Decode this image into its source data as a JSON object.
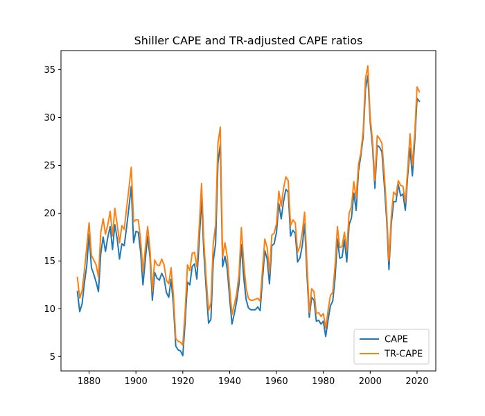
{
  "chart_data": {
    "type": "line",
    "title": "Shiller CAPE and TR-adjusted CAPE ratios",
    "xlabel": "",
    "ylabel": "",
    "xlim": [
      1868,
      2028
    ],
    "ylim": [
      3.5,
      37
    ],
    "x_ticks": [
      1880,
      1900,
      1920,
      1940,
      1960,
      1980,
      2000,
      2020
    ],
    "y_ticks": [
      5,
      10,
      15,
      20,
      25,
      30,
      35
    ],
    "legend_position": "lower-right",
    "grid": false,
    "series": [
      {
        "name": "CAPE",
        "color": "#1f77b4",
        "points": [
          [
            1875,
            11.8
          ],
          [
            1876,
            9.7
          ],
          [
            1877,
            10.5
          ],
          [
            1878,
            12.7
          ],
          [
            1879,
            14.5
          ],
          [
            1880,
            17.8
          ],
          [
            1881,
            14.3
          ],
          [
            1882,
            13.6
          ],
          [
            1883,
            12.8
          ],
          [
            1884,
            11.8
          ],
          [
            1885,
            15.8
          ],
          [
            1886,
            17.5
          ],
          [
            1887,
            16.0
          ],
          [
            1888,
            17.5
          ],
          [
            1889,
            18.6
          ],
          [
            1890,
            16.2
          ],
          [
            1891,
            18.8
          ],
          [
            1892,
            17.3
          ],
          [
            1893,
            15.2
          ],
          [
            1894,
            16.8
          ],
          [
            1895,
            16.6
          ],
          [
            1896,
            18.5
          ],
          [
            1897,
            20.6
          ],
          [
            1898,
            22.8
          ],
          [
            1899,
            16.9
          ],
          [
            1900,
            18.1
          ],
          [
            1901,
            18.0
          ],
          [
            1902,
            15.9
          ],
          [
            1903,
            12.5
          ],
          [
            1904,
            15.1
          ],
          [
            1905,
            17.6
          ],
          [
            1906,
            15.4
          ],
          [
            1907,
            10.9
          ],
          [
            1908,
            13.8
          ],
          [
            1909,
            13.2
          ],
          [
            1910,
            13.0
          ],
          [
            1911,
            13.7
          ],
          [
            1912,
            13.2
          ],
          [
            1913,
            11.7
          ],
          [
            1914,
            11.2
          ],
          [
            1915,
            13.1
          ],
          [
            1916,
            10.4
          ],
          [
            1917,
            6.1
          ],
          [
            1918,
            5.7
          ],
          [
            1919,
            5.6
          ],
          [
            1920,
            5.1
          ],
          [
            1921,
            8.6
          ],
          [
            1922,
            12.8
          ],
          [
            1923,
            12.5
          ],
          [
            1924,
            14.4
          ],
          [
            1925,
            14.7
          ],
          [
            1926,
            13.1
          ],
          [
            1927,
            17.0
          ],
          [
            1928,
            21.5
          ],
          [
            1929,
            15.8
          ],
          [
            1930,
            12.0
          ],
          [
            1931,
            8.5
          ],
          [
            1932,
            8.9
          ],
          [
            1933,
            15.0
          ],
          [
            1934,
            16.8
          ],
          [
            1935,
            25.2
          ],
          [
            1936,
            27.2
          ],
          [
            1937,
            14.4
          ],
          [
            1938,
            15.5
          ],
          [
            1939,
            14.1
          ],
          [
            1940,
            11.1
          ],
          [
            1941,
            8.4
          ],
          [
            1942,
            9.5
          ],
          [
            1943,
            10.8
          ],
          [
            1944,
            12.6
          ],
          [
            1945,
            16.7
          ],
          [
            1946,
            13.3
          ],
          [
            1947,
            11.0
          ],
          [
            1948,
            10.1
          ],
          [
            1949,
            9.9
          ],
          [
            1950,
            9.9
          ],
          [
            1951,
            9.9
          ],
          [
            1952,
            10.2
          ],
          [
            1953,
            9.8
          ],
          [
            1954,
            13.0
          ],
          [
            1955,
            16.1
          ],
          [
            1956,
            15.2
          ],
          [
            1957,
            12.6
          ],
          [
            1958,
            16.6
          ],
          [
            1959,
            16.8
          ],
          [
            1960,
            18.0
          ],
          [
            1961,
            21.0
          ],
          [
            1962,
            19.4
          ],
          [
            1963,
            21.2
          ],
          [
            1964,
            22.5
          ],
          [
            1965,
            22.2
          ],
          [
            1966,
            17.6
          ],
          [
            1967,
            18.2
          ],
          [
            1968,
            17.9
          ],
          [
            1969,
            14.9
          ],
          [
            1970,
            15.3
          ],
          [
            1971,
            16.6
          ],
          [
            1972,
            18.9
          ],
          [
            1973,
            13.6
          ],
          [
            1974,
            9.1
          ],
          [
            1975,
            11.2
          ],
          [
            1976,
            10.9
          ],
          [
            1977,
            8.7
          ],
          [
            1978,
            8.8
          ],
          [
            1979,
            8.4
          ],
          [
            1980,
            8.7
          ],
          [
            1981,
            7.1
          ],
          [
            1982,
            8.8
          ],
          [
            1983,
            10.3
          ],
          [
            1984,
            10.8
          ],
          [
            1985,
            13.2
          ],
          [
            1986,
            17.3
          ],
          [
            1987,
            15.3
          ],
          [
            1988,
            15.4
          ],
          [
            1989,
            17.2
          ],
          [
            1990,
            14.9
          ],
          [
            1991,
            18.8
          ],
          [
            1992,
            19.5
          ],
          [
            1993,
            22.1
          ],
          [
            1994,
            20.3
          ],
          [
            1995,
            24.4
          ],
          [
            1996,
            26.0
          ],
          [
            1997,
            28.0
          ],
          [
            1998,
            33.0
          ],
          [
            1999,
            34.4
          ],
          [
            2000,
            29.5
          ],
          [
            2001,
            26.9
          ],
          [
            2002,
            22.6
          ],
          [
            2003,
            27.1
          ],
          [
            2004,
            26.9
          ],
          [
            2005,
            26.4
          ],
          [
            2006,
            23.0
          ],
          [
            2007,
            19.4
          ],
          [
            2008,
            14.1
          ],
          [
            2009,
            18.9
          ],
          [
            2010,
            21.2
          ],
          [
            2011,
            21.2
          ],
          [
            2012,
            23.0
          ],
          [
            2013,
            21.8
          ],
          [
            2014,
            22.0
          ],
          [
            2015,
            20.3
          ],
          [
            2016,
            23.9
          ],
          [
            2017,
            26.8
          ],
          [
            2018,
            23.9
          ],
          [
            2019,
            27.5
          ],
          [
            2020,
            32.0
          ],
          [
            2021,
            31.7
          ]
        ]
      },
      {
        "name": "TR-CAPE",
        "color": "#ff7f0e",
        "points": [
          [
            1875,
            13.3
          ],
          [
            1876,
            11.1
          ],
          [
            1877,
            11.9
          ],
          [
            1878,
            14.0
          ],
          [
            1879,
            16.5
          ],
          [
            1880,
            19.0
          ],
          [
            1881,
            15.6
          ],
          [
            1882,
            15.1
          ],
          [
            1883,
            14.6
          ],
          [
            1884,
            13.3
          ],
          [
            1885,
            18.0
          ],
          [
            1886,
            19.4
          ],
          [
            1887,
            17.8
          ],
          [
            1888,
            18.8
          ],
          [
            1889,
            20.2
          ],
          [
            1890,
            17.6
          ],
          [
            1891,
            20.5
          ],
          [
            1892,
            18.8
          ],
          [
            1893,
            16.9
          ],
          [
            1894,
            18.7
          ],
          [
            1895,
            18.3
          ],
          [
            1896,
            20.5
          ],
          [
            1897,
            22.6
          ],
          [
            1898,
            24.8
          ],
          [
            1899,
            19.1
          ],
          [
            1900,
            19.3
          ],
          [
            1901,
            19.3
          ],
          [
            1902,
            17.2
          ],
          [
            1903,
            13.8
          ],
          [
            1904,
            16.3
          ],
          [
            1905,
            18.6
          ],
          [
            1906,
            16.2
          ],
          [
            1907,
            11.8
          ],
          [
            1908,
            15.1
          ],
          [
            1909,
            14.6
          ],
          [
            1910,
            14.5
          ],
          [
            1911,
            15.2
          ],
          [
            1912,
            14.6
          ],
          [
            1913,
            13.0
          ],
          [
            1914,
            12.6
          ],
          [
            1915,
            14.3
          ],
          [
            1916,
            11.4
          ],
          [
            1917,
            6.9
          ],
          [
            1918,
            6.6
          ],
          [
            1919,
            6.5
          ],
          [
            1920,
            6.2
          ],
          [
            1921,
            9.7
          ],
          [
            1922,
            14.6
          ],
          [
            1923,
            14.0
          ],
          [
            1924,
            15.8
          ],
          [
            1925,
            15.9
          ],
          [
            1926,
            14.4
          ],
          [
            1927,
            18.5
          ],
          [
            1928,
            23.1
          ],
          [
            1929,
            17.0
          ],
          [
            1930,
            13.1
          ],
          [
            1931,
            9.8
          ],
          [
            1932,
            10.6
          ],
          [
            1933,
            16.8
          ],
          [
            1934,
            18.8
          ],
          [
            1935,
            27.3
          ],
          [
            1936,
            29.0
          ],
          [
            1937,
            15.4
          ],
          [
            1938,
            16.9
          ],
          [
            1939,
            15.4
          ],
          [
            1940,
            12.2
          ],
          [
            1941,
            9.4
          ],
          [
            1942,
            10.4
          ],
          [
            1943,
            11.6
          ],
          [
            1944,
            13.6
          ],
          [
            1945,
            18.5
          ],
          [
            1946,
            14.9
          ],
          [
            1947,
            12.2
          ],
          [
            1948,
            11.1
          ],
          [
            1949,
            10.9
          ],
          [
            1950,
            10.9
          ],
          [
            1951,
            11.0
          ],
          [
            1952,
            11.1
          ],
          [
            1953,
            10.8
          ],
          [
            1954,
            14.0
          ],
          [
            1955,
            17.3
          ],
          [
            1956,
            16.4
          ],
          [
            1957,
            13.7
          ],
          [
            1958,
            17.7
          ],
          [
            1959,
            17.9
          ],
          [
            1960,
            18.9
          ],
          [
            1961,
            22.3
          ],
          [
            1962,
            20.7
          ],
          [
            1963,
            22.6
          ],
          [
            1964,
            23.8
          ],
          [
            1965,
            23.4
          ],
          [
            1966,
            18.7
          ],
          [
            1967,
            19.3
          ],
          [
            1968,
            19.0
          ],
          [
            1969,
            15.9
          ],
          [
            1970,
            16.5
          ],
          [
            1971,
            18.0
          ],
          [
            1972,
            20.1
          ],
          [
            1973,
            14.8
          ],
          [
            1974,
            9.6
          ],
          [
            1975,
            12.1
          ],
          [
            1976,
            11.8
          ],
          [
            1977,
            9.5
          ],
          [
            1978,
            9.6
          ],
          [
            1979,
            9.2
          ],
          [
            1980,
            9.5
          ],
          [
            1981,
            8.0
          ],
          [
            1982,
            9.8
          ],
          [
            1983,
            11.4
          ],
          [
            1984,
            11.7
          ],
          [
            1985,
            14.5
          ],
          [
            1986,
            18.6
          ],
          [
            1987,
            16.4
          ],
          [
            1988,
            16.5
          ],
          [
            1989,
            18.0
          ],
          [
            1990,
            16.1
          ],
          [
            1991,
            20.0
          ],
          [
            1992,
            20.7
          ],
          [
            1993,
            23.3
          ],
          [
            1994,
            21.5
          ],
          [
            1995,
            25.1
          ],
          [
            1996,
            26.3
          ],
          [
            1997,
            28.6
          ],
          [
            1998,
            34.1
          ],
          [
            1999,
            35.4
          ],
          [
            2000,
            30.0
          ],
          [
            2001,
            27.5
          ],
          [
            2002,
            23.4
          ],
          [
            2003,
            28.1
          ],
          [
            2004,
            27.8
          ],
          [
            2005,
            27.3
          ],
          [
            2006,
            24.1
          ],
          [
            2007,
            20.2
          ],
          [
            2008,
            15.0
          ],
          [
            2009,
            19.7
          ],
          [
            2010,
            22.2
          ],
          [
            2011,
            21.9
          ],
          [
            2012,
            23.4
          ],
          [
            2013,
            22.9
          ],
          [
            2014,
            22.8
          ],
          [
            2015,
            21.1
          ],
          [
            2016,
            24.6
          ],
          [
            2017,
            28.3
          ],
          [
            2018,
            25.0
          ],
          [
            2019,
            28.3
          ],
          [
            2020,
            33.2
          ],
          [
            2021,
            32.7
          ]
        ]
      }
    ]
  }
}
